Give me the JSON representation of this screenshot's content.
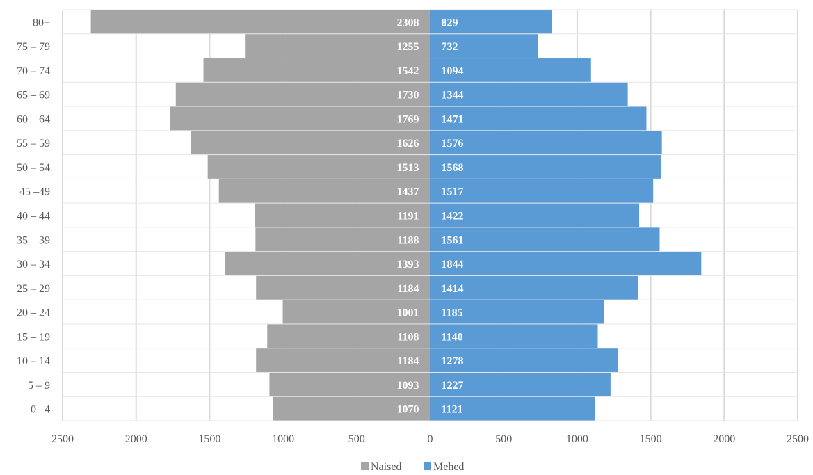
{
  "chart_data": {
    "type": "bar",
    "orientation": "horizontal",
    "layout": "population-pyramid",
    "title": "",
    "xlabel": "",
    "ylabel": "",
    "categories": [
      "80+",
      "75 – 79",
      "70 – 74",
      "65 – 69",
      "60 – 64",
      "55 – 59",
      "50 – 54",
      "45 –49",
      "40 – 44",
      "35 – 39",
      "30 – 34",
      "25 – 29",
      "20 – 24",
      "15 – 19",
      "10 – 14",
      "5 – 9",
      "0 –4"
    ],
    "series": [
      {
        "name": "Naised",
        "color": "#a5a5a5",
        "direction": "left",
        "values": [
          2308,
          1255,
          1542,
          1730,
          1769,
          1626,
          1513,
          1437,
          1191,
          1188,
          1393,
          1184,
          1001,
          1108,
          1184,
          1093,
          1070
        ]
      },
      {
        "name": "Mehed",
        "color": "#5b9bd5",
        "direction": "right",
        "values": [
          829,
          732,
          1094,
          1344,
          1471,
          1576,
          1568,
          1517,
          1422,
          1561,
          1844,
          1414,
          1185,
          1140,
          1278,
          1227,
          1121
        ]
      }
    ],
    "xlim": [
      -2500,
      2500
    ],
    "x_ticks": [
      "2500",
      "2000",
      "1500",
      "1000",
      "500",
      "0",
      "500",
      "1000",
      "1500",
      "2000",
      "2500"
    ],
    "grid": true,
    "data_labels": true,
    "legend": "bottom",
    "label_color": "#ffffff",
    "grid_color": "#d9d9d9",
    "text_color": "#595959"
  }
}
